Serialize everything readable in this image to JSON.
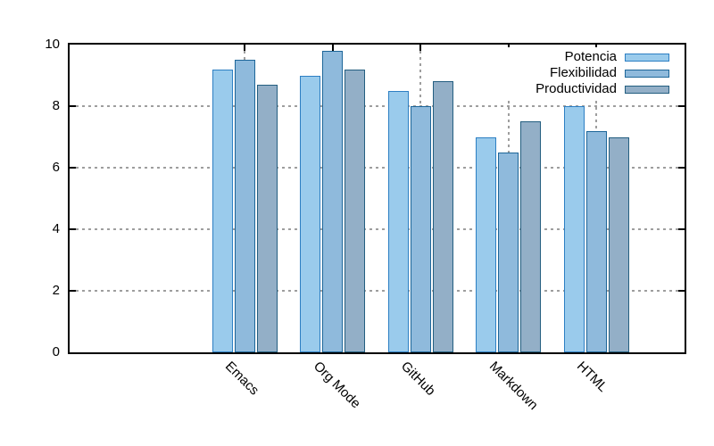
{
  "chart_data": {
    "type": "bar",
    "title": "",
    "xlabel": "",
    "ylabel": "",
    "categories": [
      "Emacs",
      "Org Mode",
      "GitHub",
      "Markdown",
      "HTML"
    ],
    "series": [
      {
        "name": "Potencia",
        "values": [
          9.2,
          9.0,
          8.5,
          7.0,
          8.0
        ],
        "fill": "#9acbec",
        "border": "#2d7fc3"
      },
      {
        "name": "Flexibilidad",
        "values": [
          9.5,
          9.8,
          8.0,
          6.5,
          7.2
        ],
        "fill": "#8fbadc",
        "border": "#1d6699"
      },
      {
        "name": "Productividad",
        "values": [
          8.7,
          9.2,
          8.8,
          7.5,
          7.0
        ],
        "fill": "#93afc7",
        "border": "#235e80"
      }
    ],
    "ylim": [
      0,
      10
    ],
    "yticks": [
      0,
      2,
      4,
      6,
      8,
      10
    ],
    "grid": true,
    "legend_position": "top-right"
  },
  "colors": {
    "axis": "#000000",
    "grid": "#9e9e9e",
    "background": "#ffffff"
  }
}
